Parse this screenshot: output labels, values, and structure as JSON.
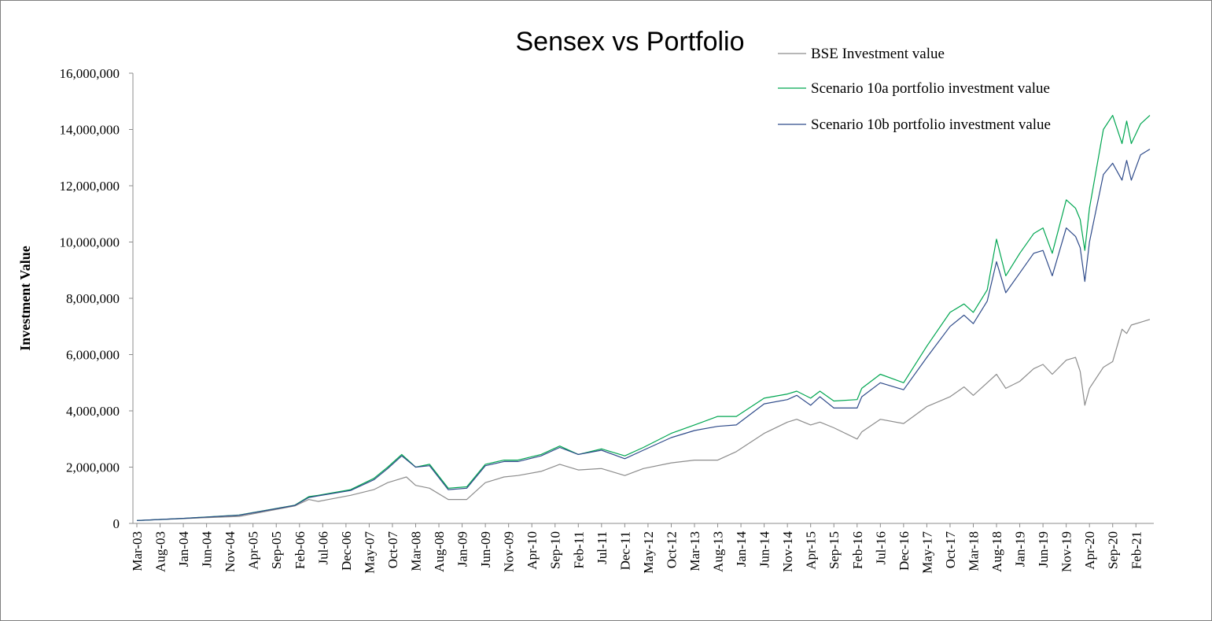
{
  "chart_data": {
    "type": "line",
    "title": "Sensex vs Portfolio",
    "xlabel": "",
    "ylabel": "Investment Value",
    "ylim": [
      0,
      16000000
    ],
    "y_ticks": [
      "0",
      "2,000,000",
      "4,000,000",
      "6,000,000",
      "8,000,000",
      "10,000,000",
      "12,000,000",
      "14,000,000",
      "16,000,000"
    ],
    "x_tick_labels": [
      "Mar-03",
      "Aug-03",
      "Jan-04",
      "Jun-04",
      "Nov-04",
      "Apr-05",
      "Sep-05",
      "Feb-06",
      "Jul-06",
      "Dec-06",
      "May-07",
      "Oct-07",
      "Mar-08",
      "Aug-08",
      "Jan-09",
      "Jun-09",
      "Nov-09",
      "Apr-10",
      "Sep-10",
      "Feb-11",
      "Jul-11",
      "Dec-11",
      "May-12",
      "Oct-12",
      "Mar-13",
      "Aug-13",
      "Jan-14",
      "Jun-14",
      "Nov-14",
      "Apr-15",
      "Sep-15",
      "Feb-16",
      "Jul-16",
      "Dec-16",
      "May-17",
      "Oct-17",
      "Mar-18",
      "Aug-18",
      "Jan-19",
      "Jun-19",
      "Nov-19",
      "Apr-20",
      "Sep-20",
      "Feb-21"
    ],
    "x_range": [
      "Mar-03",
      "May-21"
    ],
    "grid": false,
    "legend_position": "top-right",
    "series": [
      {
        "name": "BSE Investment value",
        "color": "#8c8c8c",
        "points": [
          [
            "Mar-03",
            100000
          ],
          [
            "Jan-04",
            170000
          ],
          [
            "Jan-05",
            250000
          ],
          [
            "Jan-06",
            620000
          ],
          [
            "Apr-06",
            850000
          ],
          [
            "Jun-06",
            780000
          ],
          [
            "Jan-07",
            1000000
          ],
          [
            "Jun-07",
            1200000
          ],
          [
            "Sep-07",
            1450000
          ],
          [
            "Jan-08",
            1650000
          ],
          [
            "Mar-08",
            1350000
          ],
          [
            "Jun-08",
            1250000
          ],
          [
            "Oct-08",
            850000
          ],
          [
            "Feb-09",
            850000
          ],
          [
            "Jun-09",
            1450000
          ],
          [
            "Oct-09",
            1650000
          ],
          [
            "Jan-10",
            1700000
          ],
          [
            "Jun-10",
            1850000
          ],
          [
            "Oct-10",
            2100000
          ],
          [
            "Feb-11",
            1900000
          ],
          [
            "Jul-11",
            1950000
          ],
          [
            "Dec-11",
            1700000
          ],
          [
            "Apr-12",
            1950000
          ],
          [
            "Oct-12",
            2150000
          ],
          [
            "Mar-13",
            2250000
          ],
          [
            "Aug-13",
            2250000
          ],
          [
            "Dec-13",
            2550000
          ],
          [
            "Jun-14",
            3200000
          ],
          [
            "Nov-14",
            3600000
          ],
          [
            "Jan-15",
            3700000
          ],
          [
            "Apr-15",
            3500000
          ],
          [
            "Jun-15",
            3600000
          ],
          [
            "Sep-15",
            3400000
          ],
          [
            "Feb-16",
            3000000
          ],
          [
            "Mar-16",
            3250000
          ],
          [
            "Jul-16",
            3700000
          ],
          [
            "Dec-16",
            3550000
          ],
          [
            "May-17",
            4150000
          ],
          [
            "Oct-17",
            4500000
          ],
          [
            "Jan-18",
            4850000
          ],
          [
            "Mar-18",
            4550000
          ],
          [
            "Jun-18",
            5000000
          ],
          [
            "Aug-18",
            5300000
          ],
          [
            "Oct-18",
            4800000
          ],
          [
            "Jan-19",
            5050000
          ],
          [
            "Apr-19",
            5500000
          ],
          [
            "Jun-19",
            5650000
          ],
          [
            "Aug-19",
            5300000
          ],
          [
            "Nov-19",
            5800000
          ],
          [
            "Jan-20",
            5900000
          ],
          [
            "Feb-20",
            5400000
          ],
          [
            "Mar-20",
            4200000
          ],
          [
            "Apr-20",
            4800000
          ],
          [
            "Jul-20",
            5550000
          ],
          [
            "Sep-20",
            5750000
          ],
          [
            "Nov-20",
            6900000
          ],
          [
            "Dec-20",
            6750000
          ],
          [
            "Jan-21",
            7050000
          ],
          [
            "Mar-21",
            7150000
          ],
          [
            "May-21",
            7250000
          ]
        ]
      },
      {
        "name": "Scenario 10a portfolio investment value",
        "color": "#00a651",
        "points": [
          [
            "Mar-03",
            100000
          ],
          [
            "Jan-04",
            180000
          ],
          [
            "Jan-05",
            300000
          ],
          [
            "Jan-06",
            650000
          ],
          [
            "Apr-06",
            950000
          ],
          [
            "Jun-06",
            1000000
          ],
          [
            "Jan-07",
            1200000
          ],
          [
            "Jun-07",
            1600000
          ],
          [
            "Sep-07",
            2000000
          ],
          [
            "Dec-07",
            2450000
          ],
          [
            "Mar-08",
            2000000
          ],
          [
            "Jun-08",
            2100000
          ],
          [
            "Oct-08",
            1250000
          ],
          [
            "Feb-09",
            1300000
          ],
          [
            "Jun-09",
            2100000
          ],
          [
            "Oct-09",
            2250000
          ],
          [
            "Jan-10",
            2250000
          ],
          [
            "Jun-10",
            2450000
          ],
          [
            "Oct-10",
            2750000
          ],
          [
            "Feb-11",
            2450000
          ],
          [
            "Jul-11",
            2650000
          ],
          [
            "Dec-11",
            2400000
          ],
          [
            "Apr-12",
            2700000
          ],
          [
            "Oct-12",
            3200000
          ],
          [
            "Mar-13",
            3500000
          ],
          [
            "Aug-13",
            3800000
          ],
          [
            "Dec-13",
            3800000
          ],
          [
            "Jun-14",
            4450000
          ],
          [
            "Nov-14",
            4600000
          ],
          [
            "Jan-15",
            4700000
          ],
          [
            "Apr-15",
            4450000
          ],
          [
            "Jun-15",
            4700000
          ],
          [
            "Sep-15",
            4350000
          ],
          [
            "Feb-16",
            4400000
          ],
          [
            "Mar-16",
            4800000
          ],
          [
            "Jul-16",
            5300000
          ],
          [
            "Dec-16",
            5000000
          ],
          [
            "May-17",
            6300000
          ],
          [
            "Oct-17",
            7500000
          ],
          [
            "Jan-18",
            7800000
          ],
          [
            "Mar-18",
            7500000
          ],
          [
            "Jun-18",
            8300000
          ],
          [
            "Aug-18",
            10100000
          ],
          [
            "Oct-18",
            8800000
          ],
          [
            "Jan-19",
            9600000
          ],
          [
            "Apr-19",
            10300000
          ],
          [
            "Jun-19",
            10500000
          ],
          [
            "Aug-19",
            9600000
          ],
          [
            "Nov-19",
            11500000
          ],
          [
            "Jan-20",
            11200000
          ],
          [
            "Feb-20",
            10800000
          ],
          [
            "Mar-20",
            9700000
          ],
          [
            "Apr-20",
            11200000
          ],
          [
            "Jul-20",
            14000000
          ],
          [
            "Sep-20",
            14500000
          ],
          [
            "Nov-20",
            13500000
          ],
          [
            "Dec-20",
            14300000
          ],
          [
            "Jan-21",
            13500000
          ],
          [
            "Mar-21",
            14200000
          ],
          [
            "May-21",
            14500000
          ]
        ]
      },
      {
        "name": "Scenario 10b portfolio investment value",
        "color": "#2f4b8a",
        "points": [
          [
            "Mar-03",
            100000
          ],
          [
            "Jan-04",
            180000
          ],
          [
            "Jan-05",
            290000
          ],
          [
            "Jan-06",
            640000
          ],
          [
            "Apr-06",
            920000
          ],
          [
            "Jun-06",
            980000
          ],
          [
            "Jan-07",
            1170000
          ],
          [
            "Jun-07",
            1550000
          ],
          [
            "Sep-07",
            1950000
          ],
          [
            "Dec-07",
            2400000
          ],
          [
            "Mar-08",
            2000000
          ],
          [
            "Jun-08",
            2050000
          ],
          [
            "Oct-08",
            1200000
          ],
          [
            "Feb-09",
            1250000
          ],
          [
            "Jun-09",
            2050000
          ],
          [
            "Oct-09",
            2200000
          ],
          [
            "Jan-10",
            2200000
          ],
          [
            "Jun-10",
            2400000
          ],
          [
            "Oct-10",
            2700000
          ],
          [
            "Feb-11",
            2450000
          ],
          [
            "Jul-11",
            2600000
          ],
          [
            "Dec-11",
            2300000
          ],
          [
            "Apr-12",
            2600000
          ],
          [
            "Oct-12",
            3050000
          ],
          [
            "Mar-13",
            3300000
          ],
          [
            "Aug-13",
            3450000
          ],
          [
            "Dec-13",
            3500000
          ],
          [
            "Jun-14",
            4250000
          ],
          [
            "Nov-14",
            4400000
          ],
          [
            "Jan-15",
            4550000
          ],
          [
            "Apr-15",
            4200000
          ],
          [
            "Jun-15",
            4500000
          ],
          [
            "Sep-15",
            4100000
          ],
          [
            "Feb-16",
            4100000
          ],
          [
            "Mar-16",
            4500000
          ],
          [
            "Jul-16",
            5000000
          ],
          [
            "Dec-16",
            4750000
          ],
          [
            "May-17",
            5900000
          ],
          [
            "Oct-17",
            7000000
          ],
          [
            "Jan-18",
            7400000
          ],
          [
            "Mar-18",
            7100000
          ],
          [
            "Jun-18",
            7900000
          ],
          [
            "Aug-18",
            9300000
          ],
          [
            "Oct-18",
            8200000
          ],
          [
            "Jan-19",
            8900000
          ],
          [
            "Apr-19",
            9600000
          ],
          [
            "Jun-19",
            9700000
          ],
          [
            "Aug-19",
            8800000
          ],
          [
            "Nov-19",
            10500000
          ],
          [
            "Jan-20",
            10200000
          ],
          [
            "Feb-20",
            9800000
          ],
          [
            "Mar-20",
            8600000
          ],
          [
            "Apr-20",
            10000000
          ],
          [
            "Jul-20",
            12400000
          ],
          [
            "Sep-20",
            12800000
          ],
          [
            "Nov-20",
            12200000
          ],
          [
            "Dec-20",
            12900000
          ],
          [
            "Jan-21",
            12200000
          ],
          [
            "Mar-21",
            13100000
          ],
          [
            "May-21",
            13300000
          ]
        ]
      }
    ]
  }
}
